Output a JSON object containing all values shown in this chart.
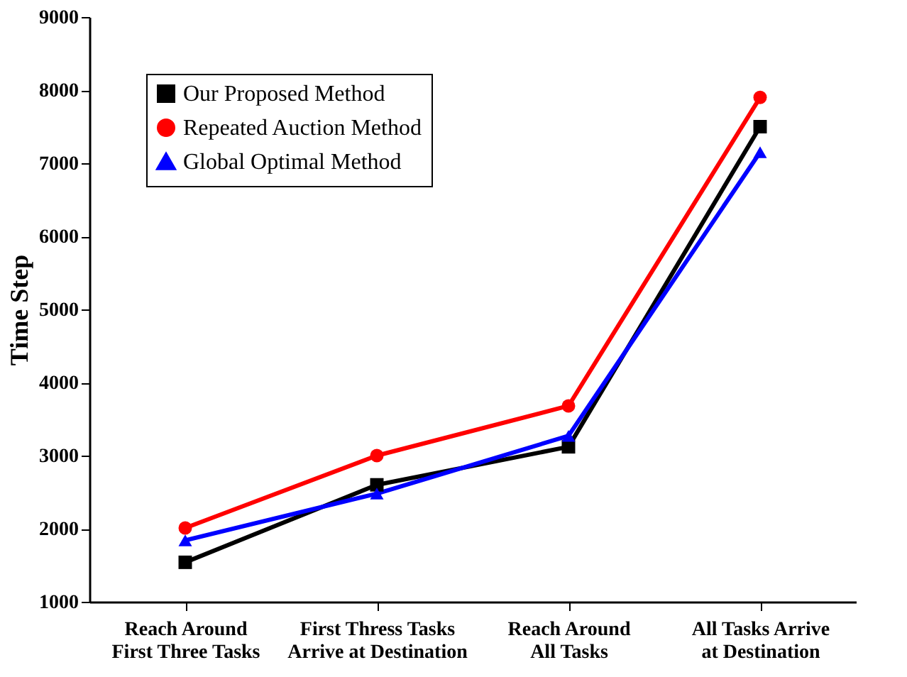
{
  "chart_data": {
    "type": "line",
    "ylabel": "Time Step",
    "categories": [
      "Reach Around\nFirst Three Tasks",
      "First Thress Tasks\nArrive at Destination",
      "Reach Around\nAll Tasks",
      "All Tasks Arrive\nat Destination"
    ],
    "series": [
      {
        "name": "Our Proposed Method",
        "color": "#000000",
        "marker": "square",
        "values": [
          1540,
          2600,
          3120,
          7500
        ]
      },
      {
        "name": "Repeated Auction Method",
        "color": "#ff0000",
        "marker": "circle",
        "values": [
          2010,
          3000,
          3680,
          7900
        ]
      },
      {
        "name": "Global Optimal Method",
        "color": "#0000ff",
        "marker": "triangle",
        "values": [
          1840,
          2480,
          3270,
          7150
        ]
      }
    ],
    "ylim": [
      1000,
      9000
    ],
    "yticks": [
      1000,
      2000,
      3000,
      4000,
      5000,
      6000,
      7000,
      8000,
      9000
    ],
    "grid": false,
    "legend": "top left",
    "line_style": "solid"
  }
}
